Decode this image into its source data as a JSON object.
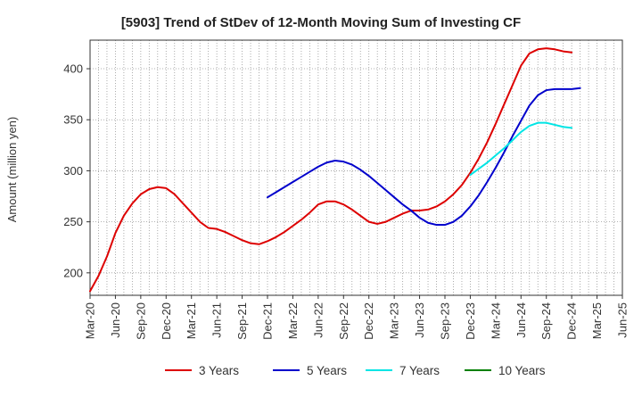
{
  "chart_data": {
    "type": "line",
    "title": "[5903]  Trend of StDev of 12-Month Moving Sum of Investing CF",
    "ylabel": "Amount (million yen)",
    "xlabel": "",
    "ylim": [
      178,
      428
    ],
    "yticks": [
      200,
      250,
      300,
      350,
      400
    ],
    "xlim": [
      "2020-03",
      "2025-06"
    ],
    "x_tick_labels": [
      "Mar-20",
      "Jun-20",
      "Sep-20",
      "Dec-20",
      "Mar-21",
      "Jun-21",
      "Sep-21",
      "Dec-21",
      "Mar-22",
      "Jun-22",
      "Sep-22",
      "Dec-22",
      "Mar-23",
      "Jun-23",
      "Sep-23",
      "Dec-23",
      "Mar-24",
      "Jun-24",
      "Sep-24",
      "Dec-24",
      "Mar-25",
      "Jun-25"
    ],
    "grid": "dotted vertical and horizontal",
    "legend_position": "bottom",
    "series": [
      {
        "name": "3 Years",
        "color": "#dd0000",
        "start": "2020-03",
        "values": [
          182,
          197,
          216,
          239,
          256,
          268,
          277,
          282,
          284,
          283,
          277,
          268,
          259,
          250,
          244,
          243,
          240,
          236,
          232,
          229,
          228,
          231,
          235,
          240,
          246,
          252,
          259,
          267,
          270,
          270,
          267,
          262,
          256,
          250,
          248,
          250,
          254,
          258,
          261,
          261,
          262,
          265,
          270,
          277,
          286,
          298,
          312,
          328,
          346,
          365,
          384,
          403,
          415,
          419,
          420,
          419,
          417,
          416
        ]
      },
      {
        "name": "5 Years",
        "color": "#0000cc",
        "start": "2021-12",
        "values": [
          274,
          279,
          284,
          289,
          294,
          299,
          304,
          308,
          310,
          309,
          306,
          301,
          295,
          288,
          281,
          274,
          267,
          261,
          254,
          249,
          247,
          247,
          250,
          256,
          265,
          276,
          289,
          303,
          318,
          334,
          349,
          364,
          374,
          379,
          380,
          380,
          380,
          381
        ]
      },
      {
        "name": "7 Years",
        "color": "#00e5e5",
        "start": "2023-12",
        "values": [
          296,
          302,
          308,
          315,
          322,
          330,
          338,
          344,
          347,
          347,
          345,
          343,
          342
        ]
      },
      {
        "name": "10 Years",
        "color": "#008000",
        "start": "2024-12",
        "values": []
      }
    ]
  }
}
